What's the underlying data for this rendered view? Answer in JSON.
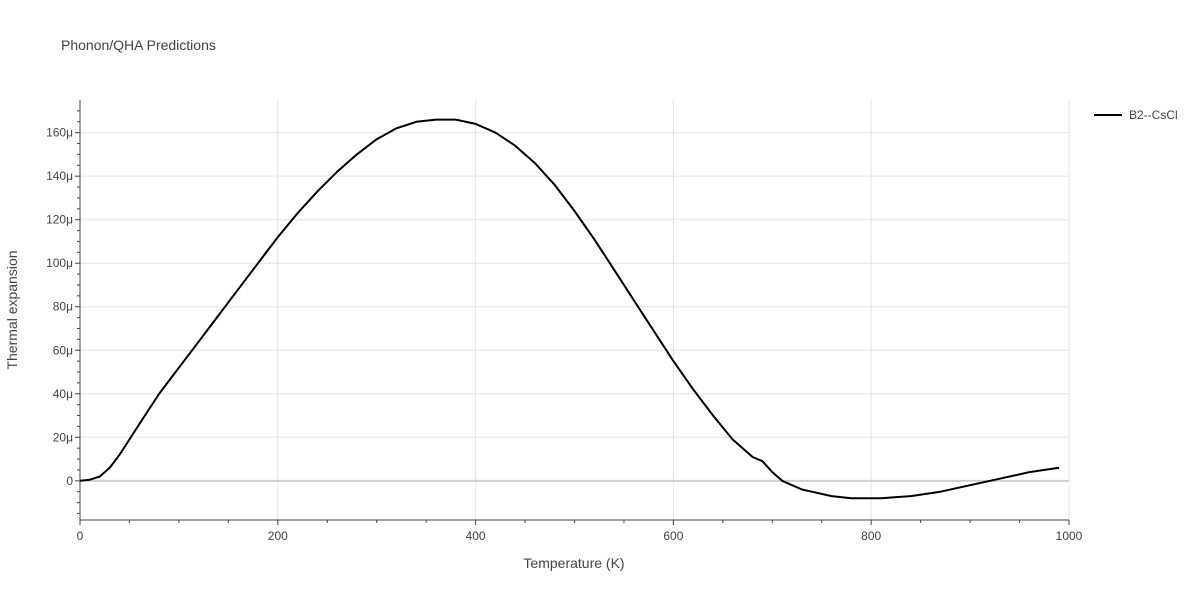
{
  "chart_data": {
    "type": "line",
    "title": "Phonon/QHA Predictions",
    "xlabel": "Temperature (K)",
    "ylabel": "Thermal expansion",
    "xlim": [
      0,
      1000
    ],
    "ylim": [
      -18,
      175
    ],
    "x_ticks": [
      {
        "value": 0,
        "label": "0"
      },
      {
        "value": 200,
        "label": "200"
      },
      {
        "value": 400,
        "label": "400"
      },
      {
        "value": 600,
        "label": "600"
      },
      {
        "value": 800,
        "label": "800"
      },
      {
        "value": 1000,
        "label": "1000"
      }
    ],
    "y_ticks": [
      {
        "value": 0,
        "label": "0"
      },
      {
        "value": 20,
        "label": "20μ"
      },
      {
        "value": 40,
        "label": "40μ"
      },
      {
        "value": 60,
        "label": "60μ"
      },
      {
        "value": 80,
        "label": "80μ"
      },
      {
        "value": 100,
        "label": "100μ"
      },
      {
        "value": 120,
        "label": "120μ"
      },
      {
        "value": 140,
        "label": "140μ"
      },
      {
        "value": 160,
        "label": "160μ"
      }
    ],
    "y_unit": "μ (×1e-6 K⁻¹)",
    "grid": true,
    "legend_position": "top-right",
    "series": [
      {
        "name": "B2--CsCl",
        "color": "#000000",
        "x": [
          0,
          10,
          20,
          30,
          40,
          50,
          60,
          70,
          80,
          100,
          120,
          140,
          160,
          180,
          200,
          220,
          240,
          260,
          280,
          300,
          320,
          340,
          360,
          380,
          400,
          420,
          440,
          460,
          480,
          500,
          520,
          540,
          560,
          580,
          600,
          620,
          640,
          660,
          680,
          690,
          700,
          710,
          720,
          730,
          740,
          760,
          780,
          800,
          810,
          840,
          870,
          900,
          930,
          960,
          990
        ],
        "y": [
          0,
          0.5,
          2,
          6,
          12,
          19,
          26,
          33,
          40,
          52,
          64,
          76,
          88,
          100,
          112,
          123,
          133,
          142,
          150,
          157,
          162,
          165,
          166,
          166,
          164,
          160,
          154,
          146,
          136,
          124,
          111,
          97,
          83,
          69,
          55,
          42,
          30,
          19,
          11,
          9,
          4,
          0,
          -2,
          -4,
          -5,
          -7,
          -8,
          -8,
          -8,
          -7,
          -5,
          -2,
          1,
          4,
          6
        ]
      }
    ]
  }
}
